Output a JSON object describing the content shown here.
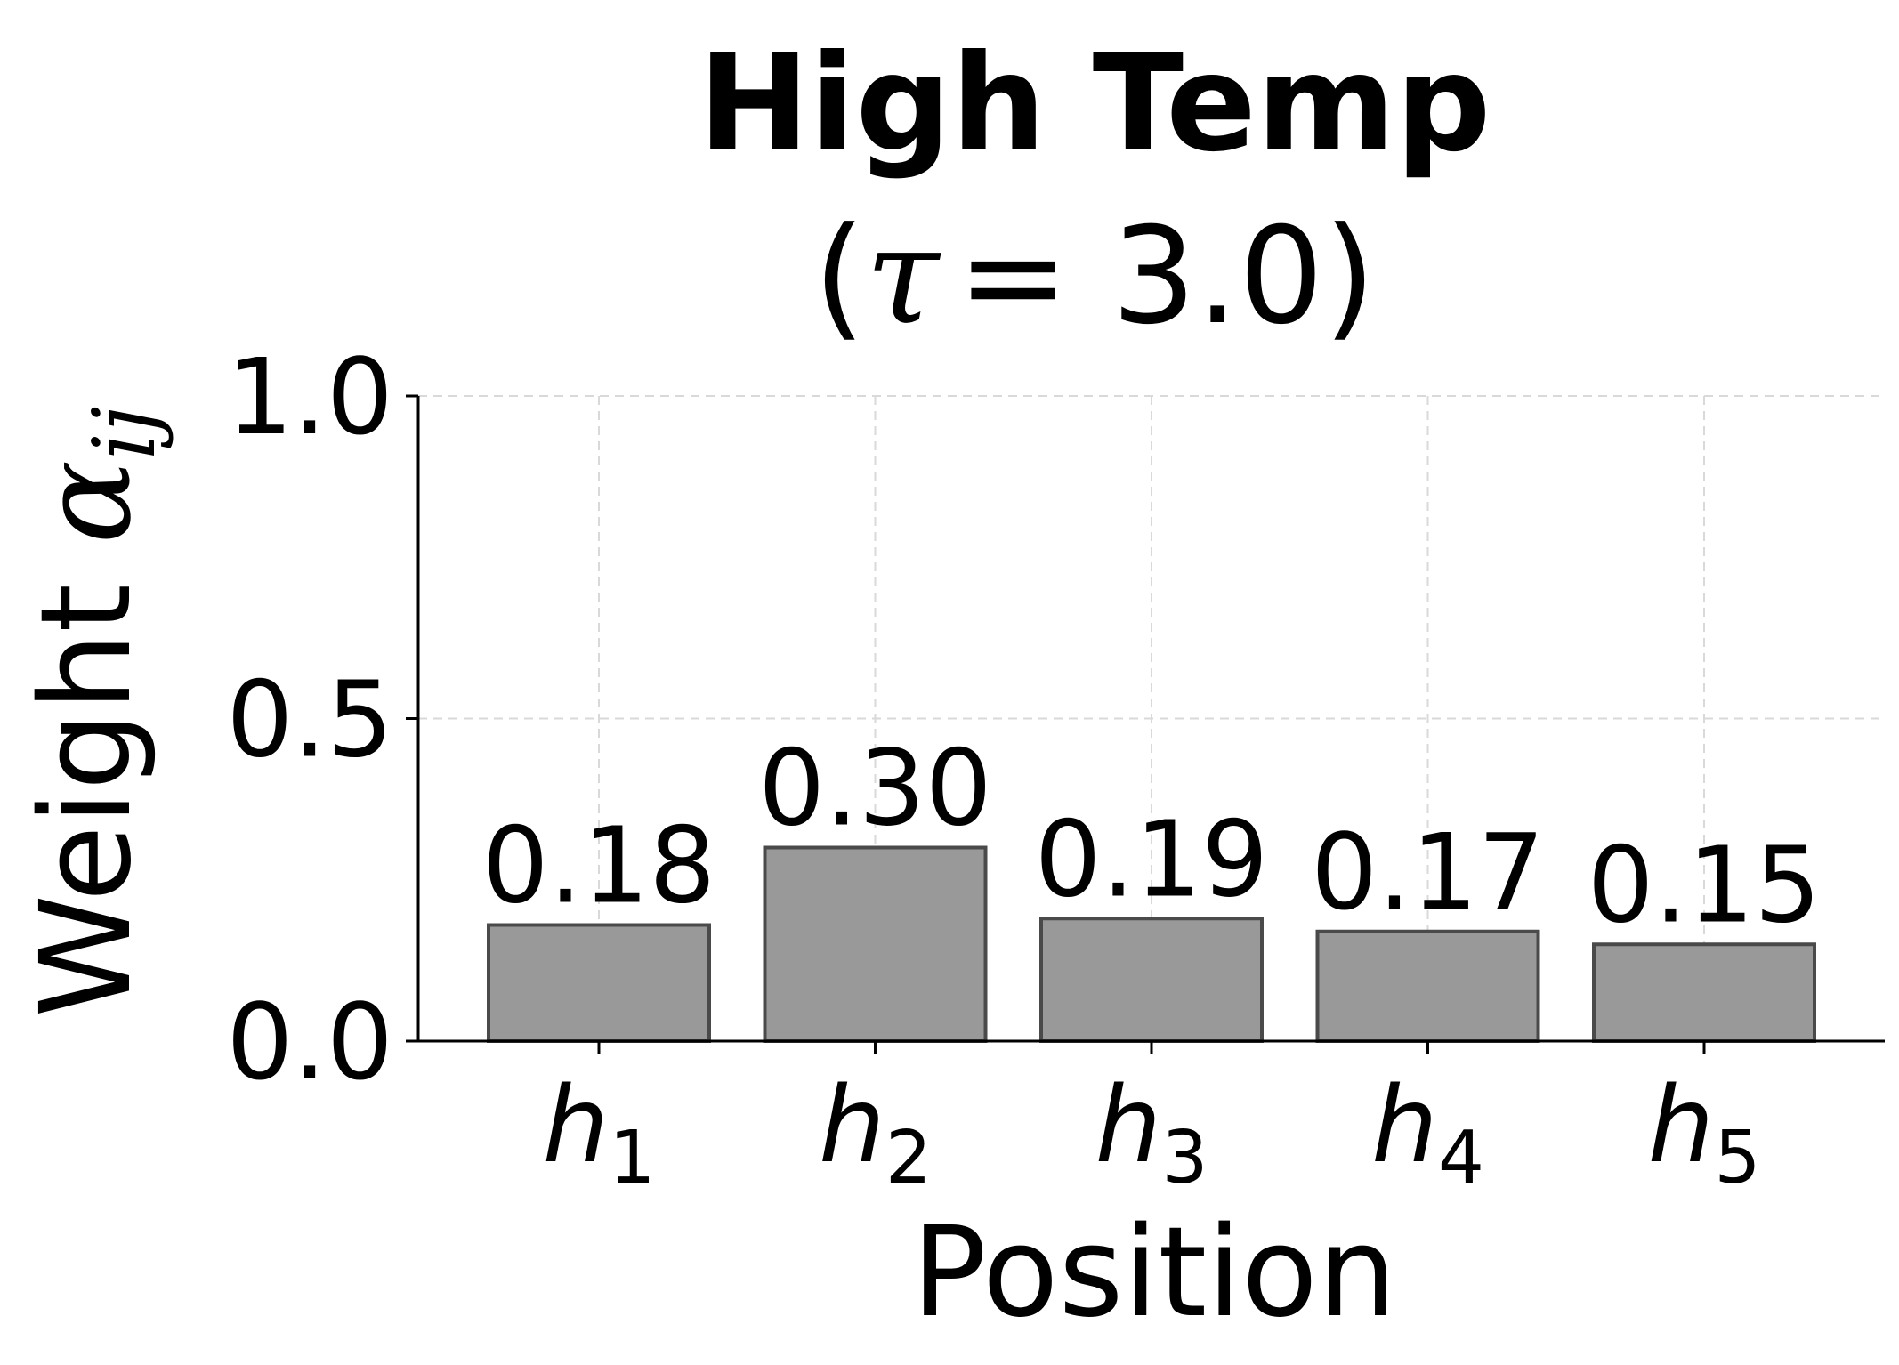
{
  "chart_data": {
    "type": "bar",
    "title": "High Temp",
    "subtitle_symbol": "τ",
    "subtitle_value": "= 3.0",
    "categories": [
      {
        "base": "h",
        "sub": "1"
      },
      {
        "base": "h",
        "sub": "2"
      },
      {
        "base": "h",
        "sub": "3"
      },
      {
        "base": "h",
        "sub": "4"
      },
      {
        "base": "h",
        "sub": "5"
      }
    ],
    "values": [
      0.18,
      0.3,
      0.19,
      0.17,
      0.15
    ],
    "value_labels": [
      "0.18",
      "0.30",
      "0.19",
      "0.17",
      "0.15"
    ],
    "xlabel": "Position",
    "ylabel": {
      "text": "Weight ",
      "symbol": "α",
      "sub": "ij"
    },
    "ylim": [
      0,
      1.0
    ],
    "yticks": [
      0.0,
      0.5,
      1.0
    ],
    "ytick_labels": [
      "0.0",
      "0.5",
      "1.0"
    ],
    "grid": true,
    "bar_color": "#999999",
    "bar_edge_color": "#4a4a4a"
  }
}
